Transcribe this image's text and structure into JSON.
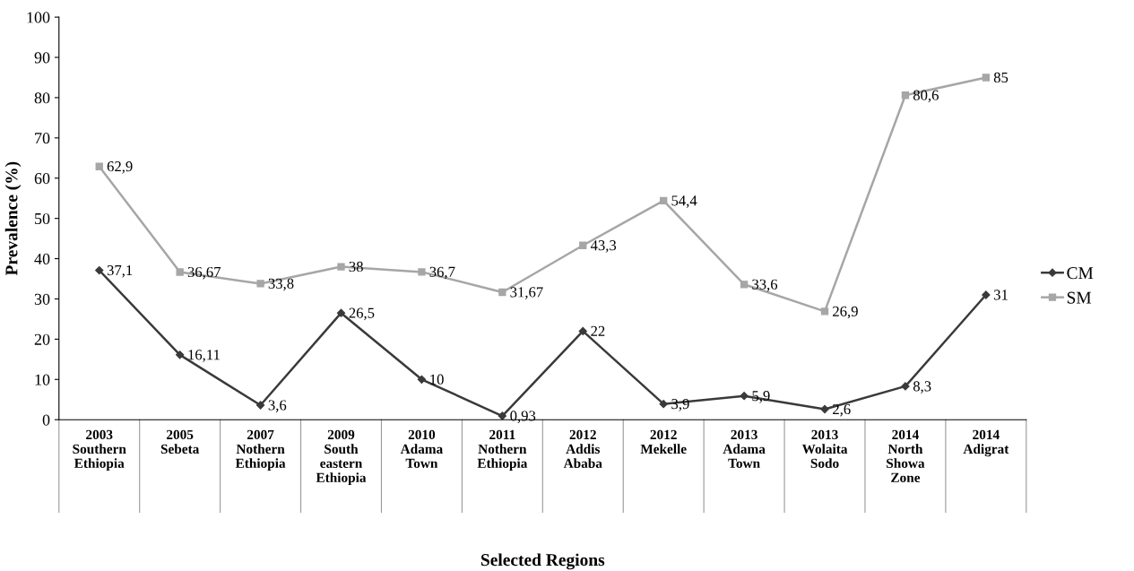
{
  "chart_data": {
    "type": "line",
    "xlabel": "Selected Regions",
    "ylabel": "Prevalence (%)",
    "categories": [
      "2003\nSouthern\nEthiopia",
      "2005\nSebeta",
      "2007\nNothern\nEthiopia",
      "2009\nSouth\neastern\nEthiopia",
      "2010\nAdama\nTown",
      "2011\nNothern\nEthiopia",
      "2012\nAddis\nAbaba",
      "2012\nMekelle",
      "2013\nAdama\nTown",
      "2013\nWolaita\nSodo",
      "2014\nNorth\nShowa\nZone",
      "2014\nAdigrat"
    ],
    "series": [
      {
        "name": "CM",
        "color": "#3a3a3a",
        "marker": "diamond",
        "values": [
          37.1,
          16.11,
          3.6,
          26.5,
          10,
          0.93,
          22,
          3.9,
          5.9,
          2.6,
          8.3,
          31
        ],
        "value_labels": [
          "37,1",
          "16,11",
          "3,6",
          "26,5",
          "10",
          "0,93",
          "22",
          "3,9",
          "5,9",
          "2,6",
          "8,3",
          "31"
        ]
      },
      {
        "name": "SM",
        "color": "#a6a6a6",
        "marker": "square",
        "values": [
          62.9,
          36.67,
          33.8,
          38,
          36.7,
          31.67,
          43.3,
          54.4,
          33.6,
          26.9,
          80.6,
          85
        ],
        "value_labels": [
          "62,9",
          "36,67",
          "33,8",
          "38",
          "36,7",
          "31,67",
          "43,3",
          "54,4",
          "33,6",
          "26,9",
          "80,6",
          "85"
        ]
      }
    ],
    "ylim": [
      0,
      100
    ],
    "yticks": [
      0,
      10,
      20,
      30,
      40,
      50,
      60,
      70,
      80,
      90,
      100
    ],
    "grid": false,
    "legend": "right",
    "line_style": "solid"
  }
}
